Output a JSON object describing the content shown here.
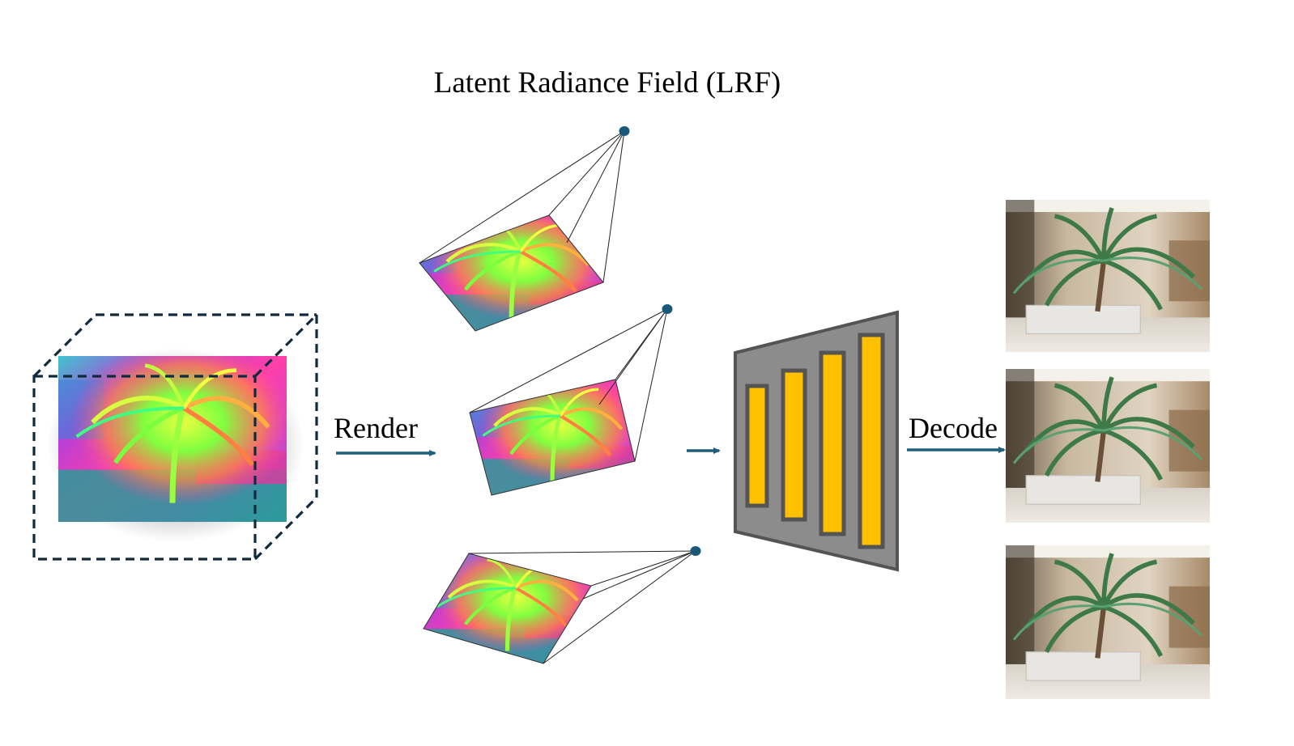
{
  "title": "Latent Radiance Field (LRF)",
  "labels": {
    "render": "Render",
    "decode": "Decode"
  },
  "colors": {
    "arrow": "#1f5f7a",
    "camera_dot": "#1a5878",
    "decoder_body": "#8c8c8c",
    "decoder_border": "#545454",
    "decoder_bar": "#ffc000",
    "cube_dash": "#0f2b3d"
  },
  "icons": {
    "latent_volume": "latent-feature-cube-icon",
    "camera": "camera-frustum-icon",
    "decoder": "decoder-network-icon",
    "output": "rendered-rgb-image-icon"
  }
}
